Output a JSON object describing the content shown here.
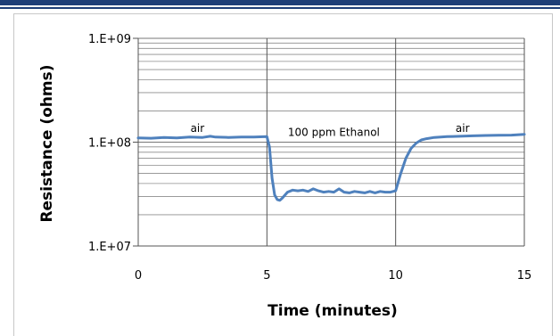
{
  "chart_data": {
    "type": "line",
    "title": "",
    "xlabel": "Time (minutes)",
    "ylabel": "Resistance (ohms)",
    "xlim": [
      0,
      15
    ],
    "ylim": [
      10000000,
      1000000000
    ],
    "y_scale": "log",
    "x_ticks": [
      0,
      5,
      10,
      15
    ],
    "x_tick_labels": [
      "0",
      "5",
      "10",
      "15"
    ],
    "y_ticks": [
      10000000,
      100000000,
      1000000000
    ],
    "y_tick_labels": [
      "1.E+07",
      "1.E+08",
      "1.E+09"
    ],
    "grid": true,
    "legend": "none",
    "line_color": "#4f81bd",
    "vertical_markers": [
      5,
      10
    ],
    "annotations": [
      {
        "text": "air",
        "x": 2.3,
        "y": 125000000
      },
      {
        "text": "100 ppm Ethanol",
        "x": 7.6,
        "y": 115000000
      },
      {
        "text": "air",
        "x": 12.6,
        "y": 125000000
      }
    ],
    "series": [
      {
        "x": [
          0,
          0.5,
          1.0,
          1.5,
          2.0,
          2.5,
          2.8,
          3.0,
          3.5,
          4.0,
          4.5,
          5.0,
          5.1,
          5.2,
          5.3,
          5.4,
          5.5,
          5.6,
          5.8,
          6.0,
          6.2,
          6.4,
          6.6,
          6.8,
          7.0,
          7.2,
          7.4,
          7.6,
          7.8,
          8.0,
          8.2,
          8.4,
          8.6,
          8.8,
          9.0,
          9.2,
          9.4,
          9.6,
          9.8,
          10.0,
          10.2,
          10.4,
          10.6,
          10.8,
          11.0,
          11.2,
          11.5,
          12.0,
          12.5,
          13.0,
          13.5,
          14.0,
          14.5,
          15.0
        ],
        "y": [
          110000000,
          109000000,
          111000000,
          110000000,
          112000000,
          111000000,
          114000000,
          112000000,
          111000000,
          112000000,
          112000000,
          113000000,
          90000000,
          45000000,
          31000000,
          28000000,
          27500000,
          29000000,
          33000000,
          34500000,
          34000000,
          34500000,
          33500000,
          35500000,
          34000000,
          33000000,
          33500000,
          33000000,
          35500000,
          33000000,
          32500000,
          33500000,
          33000000,
          32500000,
          33500000,
          32500000,
          33500000,
          33000000,
          33000000,
          34000000,
          50000000,
          70000000,
          87000000,
          98000000,
          105000000,
          108000000,
          111000000,
          113000000,
          114000000,
          115000000,
          116000000,
          116500000,
          117000000,
          119000000
        ]
      }
    ]
  }
}
